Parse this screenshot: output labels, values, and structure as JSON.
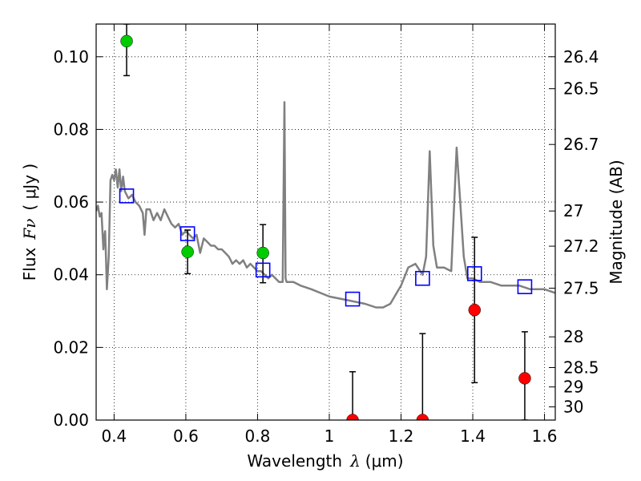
{
  "chart_data": {
    "type": "scatter",
    "xlabel_text": "Wavelength",
    "xlabel_symbol": "λ",
    "xlabel_unit": "(μm)",
    "ylabel_text": "Flux",
    "ylabel_symbol": "Fν",
    "ylabel_unit": "( μJy )",
    "y2label": "Magnitude (AB)",
    "xlim": [
      0.35,
      1.63
    ],
    "ylim": [
      0.0,
      0.109
    ],
    "grid": true,
    "x_ticks": [
      0.4,
      0.6,
      0.8,
      1.0,
      1.2,
      1.4,
      1.6
    ],
    "x_tick_labels": [
      "0.4",
      "0.6",
      "0.8",
      "1",
      "1.2",
      "1.4",
      "1.6"
    ],
    "y_ticks": [
      0.0,
      0.02,
      0.04,
      0.06,
      0.08,
      0.1
    ],
    "y_tick_labels": [
      "0.00",
      "0.02",
      "0.04",
      "0.06",
      "0.08",
      "0.10"
    ],
    "mag_ticks": [
      26.4,
      26.5,
      26.7,
      27,
      27.2,
      27.5,
      28,
      28.5,
      29,
      30
    ],
    "mag_tick_labels": [
      "26.4",
      "26.5",
      "26.7",
      "27",
      "27.2",
      "27.5",
      "28",
      "28.5",
      "29",
      "30"
    ],
    "series": [
      {
        "role": "model spectrum",
        "style": "line",
        "color": "#808080",
        "x": [
          0.35,
          0.355,
          0.36,
          0.365,
          0.37,
          0.372,
          0.375,
          0.378,
          0.38,
          0.385,
          0.39,
          0.395,
          0.4,
          0.405,
          0.41,
          0.415,
          0.42,
          0.425,
          0.43,
          0.44,
          0.45,
          0.46,
          0.47,
          0.48,
          0.485,
          0.49,
          0.5,
          0.51,
          0.52,
          0.53,
          0.54,
          0.55,
          0.56,
          0.57,
          0.58,
          0.59,
          0.6,
          0.61,
          0.62,
          0.63,
          0.64,
          0.65,
          0.66,
          0.67,
          0.68,
          0.69,
          0.7,
          0.71,
          0.72,
          0.73,
          0.74,
          0.75,
          0.76,
          0.77,
          0.78,
          0.79,
          0.8,
          0.81,
          0.82,
          0.83,
          0.84,
          0.85,
          0.86,
          0.87,
          0.875,
          0.878,
          0.881,
          0.885,
          0.89,
          0.9,
          0.92,
          0.95,
          1.0,
          1.05,
          1.1,
          1.13,
          1.15,
          1.17,
          1.2,
          1.22,
          1.24,
          1.26,
          1.27,
          1.28,
          1.29,
          1.3,
          1.32,
          1.34,
          1.355,
          1.365,
          1.375,
          1.385,
          1.4,
          1.42,
          1.45,
          1.48,
          1.5,
          1.53,
          1.56,
          1.58,
          1.6,
          1.63
        ],
        "y": [
          0.0575,
          0.059,
          0.056,
          0.057,
          0.047,
          0.05,
          0.052,
          0.043,
          0.036,
          0.045,
          0.066,
          0.0675,
          0.066,
          0.069,
          0.064,
          0.069,
          0.063,
          0.067,
          0.063,
          0.061,
          0.062,
          0.06,
          0.059,
          0.057,
          0.051,
          0.058,
          0.058,
          0.055,
          0.057,
          0.055,
          0.058,
          0.056,
          0.054,
          0.053,
          0.054,
          0.051,
          0.052,
          0.051,
          0.05,
          0.051,
          0.046,
          0.05,
          0.049,
          0.048,
          0.048,
          0.047,
          0.047,
          0.046,
          0.045,
          0.043,
          0.044,
          0.043,
          0.044,
          0.042,
          0.043,
          0.042,
          0.041,
          0.041,
          0.04,
          0.039,
          0.04,
          0.039,
          0.038,
          0.038,
          0.0875,
          0.039,
          0.038,
          0.038,
          0.038,
          0.038,
          0.037,
          0.036,
          0.034,
          0.033,
          0.032,
          0.031,
          0.031,
          0.032,
          0.037,
          0.042,
          0.043,
          0.04,
          0.045,
          0.074,
          0.048,
          0.042,
          0.042,
          0.041,
          0.075,
          0.06,
          0.045,
          0.039,
          0.039,
          0.038,
          0.038,
          0.037,
          0.037,
          0.037,
          0.036,
          0.036,
          0.036,
          0.035
        ]
      },
      {
        "role": "model photometry",
        "style": "open-square",
        "color": "#0000ff",
        "x": [
          0.435,
          0.605,
          0.815,
          1.065,
          1.26,
          1.405,
          1.545
        ],
        "y": [
          0.0617,
          0.0513,
          0.0413,
          0.0333,
          0.039,
          0.0403,
          0.0367
        ]
      },
      {
        "role": "detections",
        "style": "filled-circle",
        "color": "#00cc00",
        "x": [
          0.435,
          0.605,
          0.815
        ],
        "y": [
          0.1043,
          0.0463,
          0.046
        ],
        "err_low": [
          0.0948,
          0.0403,
          0.0378
        ],
        "err_high": [
          0.109,
          0.0523,
          0.0538
        ]
      },
      {
        "role": "non-detections",
        "style": "filled-circle",
        "color": "#ff0000",
        "x": [
          1.065,
          1.26,
          1.405,
          1.545
        ],
        "y": [
          0.0,
          0.0,
          0.0303,
          0.0115
        ],
        "err_low": [
          0.0,
          0.0,
          0.0103,
          0.0
        ],
        "err_high": [
          0.0133,
          0.0238,
          0.0503,
          0.0243
        ]
      }
    ]
  }
}
